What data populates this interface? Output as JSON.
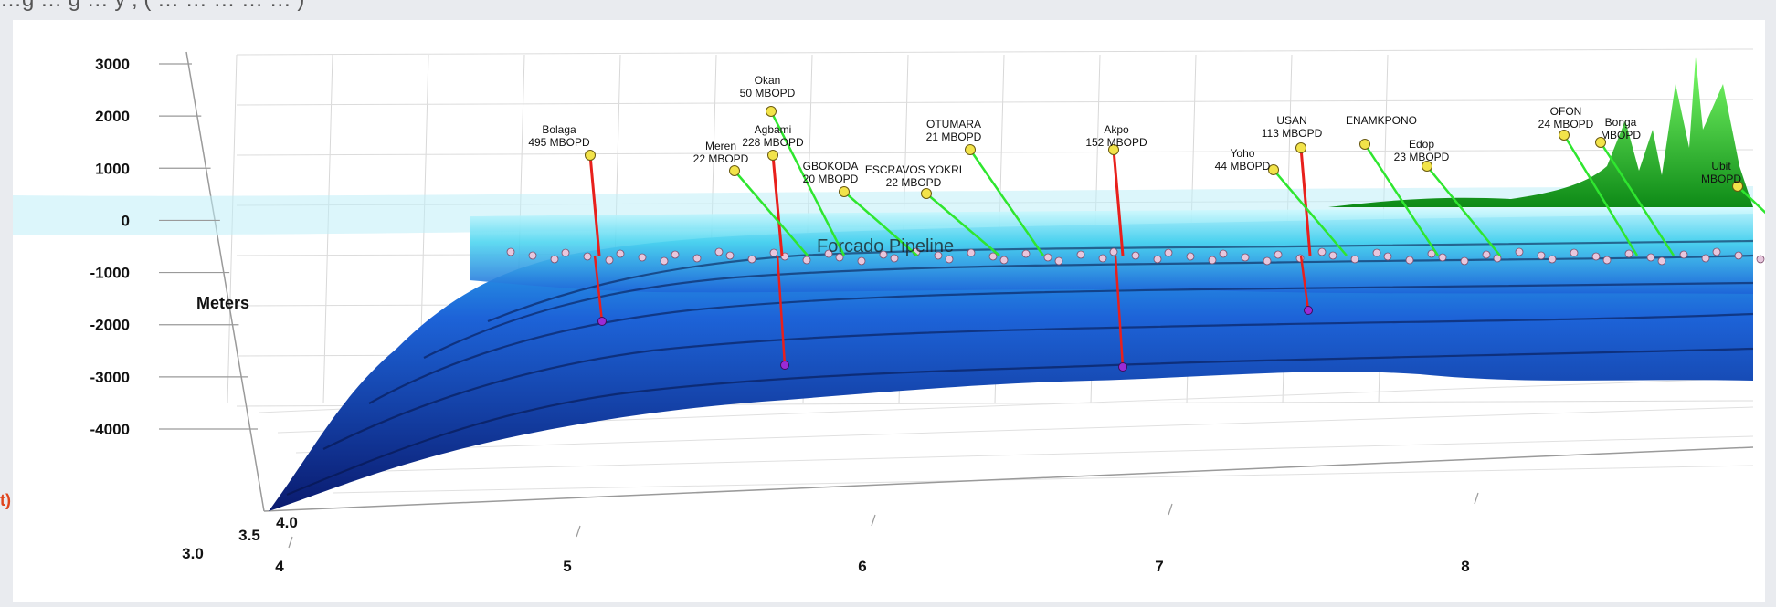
{
  "top_caption": "…g … g … y , ( … … … … … )",
  "left_edge_mark": "t)",
  "chart_data": {
    "type": "surface3d",
    "ylabel": "Meters",
    "zlim": [
      -4000,
      3000
    ],
    "z_ticks": [
      "3000",
      "2000",
      "1000",
      "0",
      "-1000",
      "-2000",
      "-3000",
      "-4000"
    ],
    "x_ticks": [
      "4",
      "5",
      "6",
      "7",
      "8"
    ],
    "y_ticks": [
      "3.0",
      "3.5",
      "4.0"
    ],
    "grid": true,
    "colors": {
      "surface_deep": "#0a1a6e",
      "surface_mid": "#1d63d8",
      "surface_shallow": "#4fd6f0",
      "surface_land": "#29d42b",
      "stems": "#e8201c",
      "leader_lines": "#2fe62f",
      "field_markers": "#f2e34a",
      "seafloor_markers": "#9b2bd6",
      "platform_markers": "#e8c7dd"
    },
    "annotations": [
      {
        "name": "Bolaga",
        "text": "Bolaga",
        "value": "495 MBOPD"
      },
      {
        "name": "Okan",
        "text": "Okan",
        "value": "50 MBOPD"
      },
      {
        "name": "Agbami",
        "text": "Agbami",
        "value": "228 MBOPD"
      },
      {
        "name": "Meren",
        "text": "Meren",
        "value": "22 MBOPD"
      },
      {
        "name": "GBOKODA",
        "text": "GBOKODA",
        "value": "20 MBOPD"
      },
      {
        "name": "ESCRAVOS YOKRI",
        "text": "ESCRAVOS YOKRI",
        "value": "22 MBOPD"
      },
      {
        "name": "OTUMARA",
        "text": "OTUMARA",
        "value": "21 MBOPD"
      },
      {
        "name": "Akpo",
        "text": "Akpo",
        "value": "152 MBOPD"
      },
      {
        "name": "Usan",
        "text": "USAN",
        "value": "113 MBOPD"
      },
      {
        "name": "ENAMKPONO",
        "text": "ENAMKPONO",
        "value": ""
      },
      {
        "name": "Yoho",
        "text": "Yoho",
        "value": "44 MBOPD"
      },
      {
        "name": "Edop",
        "text": "Edop",
        "value": "23 MBOPD"
      },
      {
        "name": "Ubit",
        "text": "Ubit",
        "value": "MBOPD"
      },
      {
        "name": "OFON",
        "text": "OFON",
        "value": "24 MBOPD"
      },
      {
        "name": "Bonga",
        "text": "Bonga",
        "value": "MBOPD"
      },
      {
        "name": "Forcados",
        "text": "Forcado Pipeline",
        "value": ""
      }
    ]
  }
}
